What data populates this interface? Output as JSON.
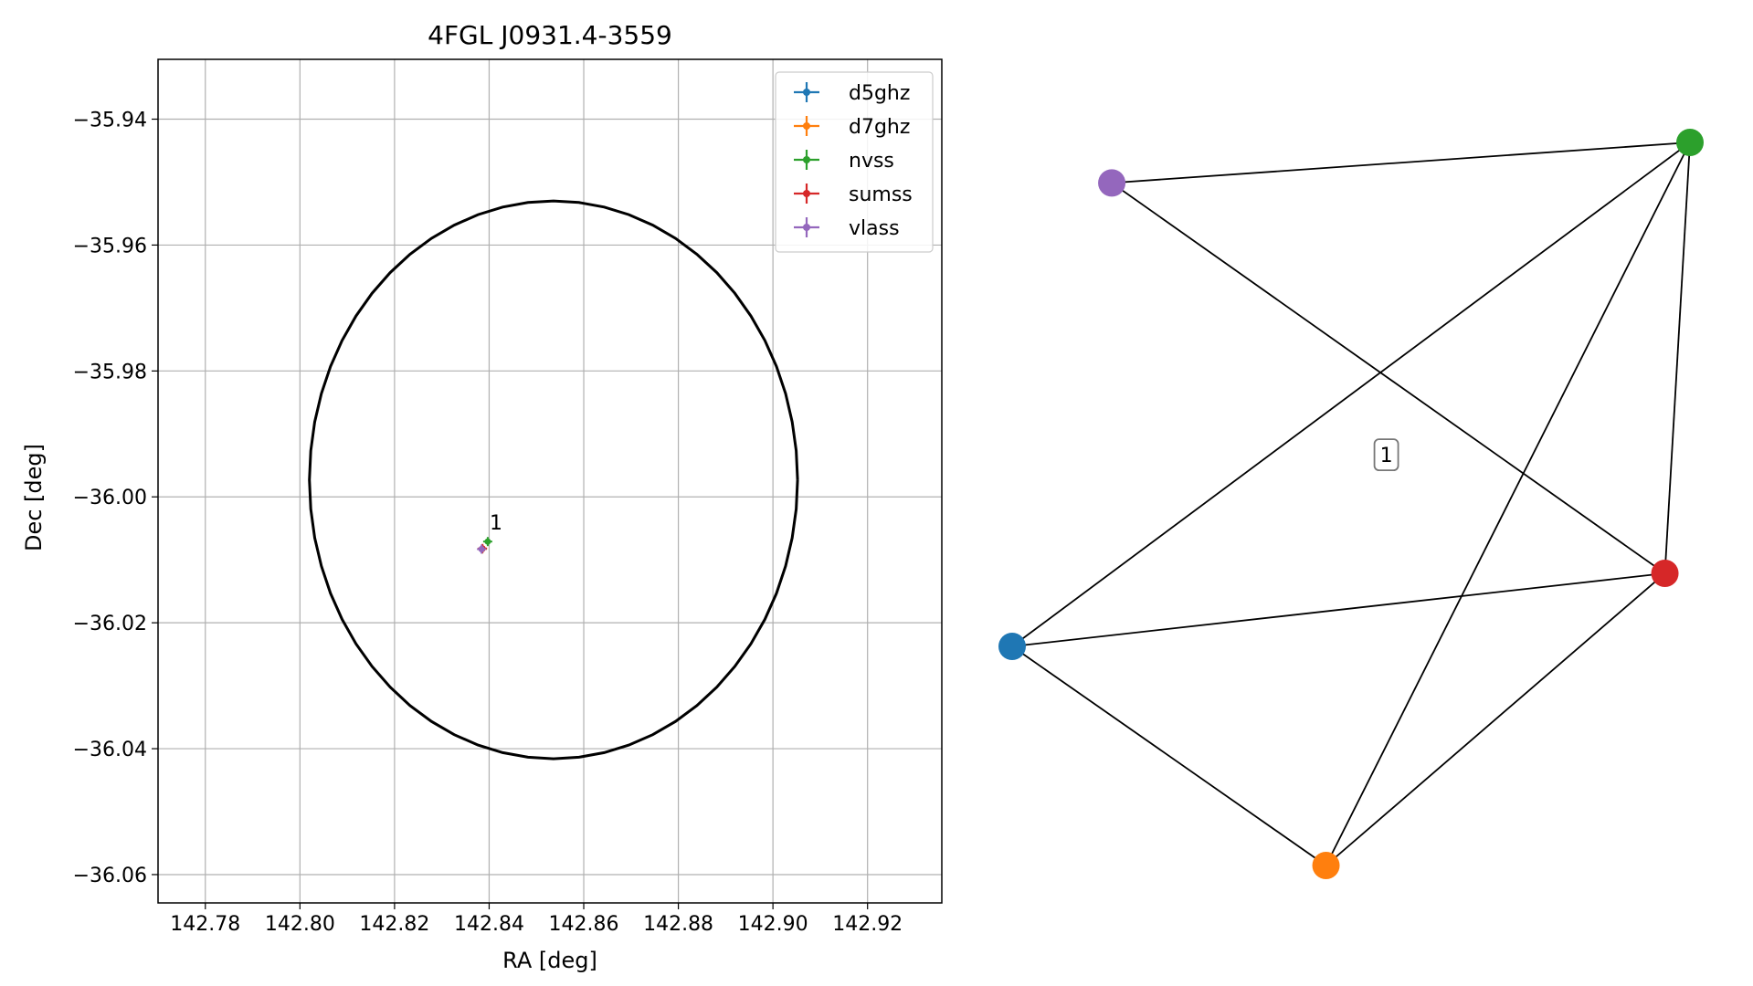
{
  "chart_data": [
    {
      "type": "scatter",
      "title": "4FGL J0931.4-3559",
      "xlabel": "RA [deg]",
      "ylabel": "Dec [deg]",
      "xlim": [
        142.77,
        142.9357
      ],
      "ylim": [
        -36.0645,
        -35.9305
      ],
      "xticks": [
        "142.78",
        "142.80",
        "142.82",
        "142.84",
        "142.86",
        "142.88",
        "142.90",
        "142.92"
      ],
      "xtick_values": [
        142.78,
        142.8,
        142.82,
        142.84,
        142.86,
        142.88,
        142.9,
        142.92
      ],
      "yticks": [
        "−35.94",
        "−35.96",
        "−35.98",
        "−36.00",
        "−36.02",
        "−36.04",
        "−36.06"
      ],
      "ytick_values": [
        -35.94,
        -35.96,
        -35.98,
        -36.0,
        -36.02,
        -36.04,
        -36.06
      ],
      "grid": true,
      "legend_position": "top-right",
      "series": [
        {
          "name": "d5ghz",
          "color": "#1f77b4",
          "x": 142.8385,
          "y": -36.0083
        },
        {
          "name": "d7ghz",
          "color": "#ff7f0e",
          "x": 142.8385,
          "y": -36.0083
        },
        {
          "name": "nvss",
          "color": "#2ca02c",
          "x": 142.8397,
          "y": -36.0071
        },
        {
          "name": "sumss",
          "color": "#d62728",
          "x": 142.8386,
          "y": -36.0082
        },
        {
          "name": "vlass",
          "color": "#9467bd",
          "x": 142.8384,
          "y": -36.0083
        }
      ],
      "ellipse": {
        "center_x": 142.8536,
        "center_y": -35.9973,
        "semi_x": 0.0516,
        "semi_y": 0.0443,
        "color": "#000000"
      },
      "annotations": [
        {
          "text": "1",
          "x": 142.8401,
          "y": -36.0052
        }
      ]
    },
    {
      "type": "network",
      "nodes": [
        {
          "name": "d5ghz",
          "color": "#1f77b4",
          "x": 0.0,
          "y": 0.303
        },
        {
          "name": "d7ghz",
          "color": "#ff7f0e",
          "x": 0.463,
          "y": 0.0
        },
        {
          "name": "nvss",
          "color": "#2ca02c",
          "x": 1.0,
          "y": 1.0
        },
        {
          "name": "sumss",
          "color": "#d62728",
          "x": 0.963,
          "y": 0.404
        },
        {
          "name": "vlass",
          "color": "#9467bd",
          "x": 0.147,
          "y": 0.944
        }
      ],
      "edges": [
        [
          "vlass",
          "nvss"
        ],
        [
          "vlass",
          "sumss"
        ],
        [
          "d5ghz",
          "nvss"
        ],
        [
          "d5ghz",
          "sumss"
        ],
        [
          "d5ghz",
          "d7ghz"
        ],
        [
          "d7ghz",
          "nvss"
        ],
        [
          "d7ghz",
          "sumss"
        ],
        [
          "nvss",
          "sumss"
        ]
      ],
      "label": {
        "text": "1",
        "x": 0.552,
        "y": 0.568
      }
    }
  ]
}
